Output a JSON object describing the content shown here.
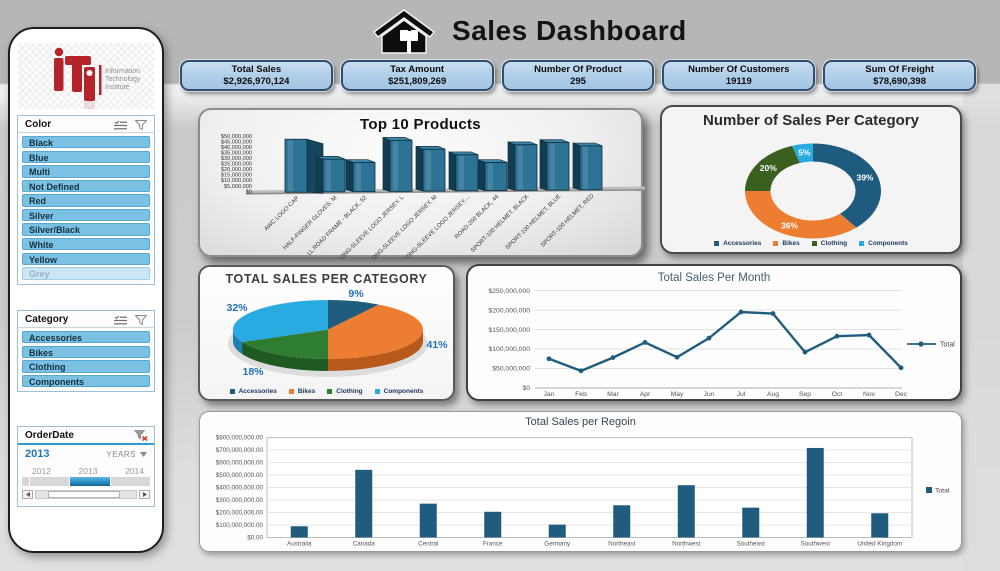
{
  "header": {
    "title": "Sales Dashboard"
  },
  "kpis": [
    {
      "label": "Total Sales",
      "value": "$2,926,970,124"
    },
    {
      "label": "Tax Amount",
      "value": "$251,809,269"
    },
    {
      "label": "Number Of Product",
      "value": "295"
    },
    {
      "label": "Number Of Customers",
      "value": "19119"
    },
    {
      "label": "Sum Of Freight",
      "value": "$78,690,398"
    }
  ],
  "sidebar": {
    "logo": {
      "mark": "iTi",
      "caption_lines": [
        "Information",
        "Technology",
        "Institute"
      ],
      "brand_color": "#b5232b"
    },
    "color_slicer": {
      "title": "Color",
      "items": [
        {
          "label": "Black",
          "selected": true
        },
        {
          "label": "Blue",
          "selected": true
        },
        {
          "label": "Multi",
          "selected": true
        },
        {
          "label": "Not Defined",
          "selected": true
        },
        {
          "label": "Red",
          "selected": true
        },
        {
          "label": "Silver",
          "selected": true
        },
        {
          "label": "Silver/Black",
          "selected": true
        },
        {
          "label": "White",
          "selected": true
        },
        {
          "label": "Yellow",
          "selected": true
        },
        {
          "label": "Grey",
          "selected": false
        }
      ]
    },
    "category_slicer": {
      "title": "Category",
      "items": [
        {
          "label": "Accessories",
          "selected": true
        },
        {
          "label": "Bikes",
          "selected": true
        },
        {
          "label": "Clothing",
          "selected": true
        },
        {
          "label": "Components",
          "selected": true
        }
      ]
    },
    "date_slicer": {
      "title": "OrderDate",
      "selection": "2013",
      "granularity": "YEARS",
      "years": [
        "2012",
        "2013",
        "2014"
      ],
      "selected_year": "2013"
    }
  },
  "chart_data": [
    {
      "id": "top10",
      "type": "bar",
      "style": "3d-column",
      "title": "Top 10 Products",
      "categories": [
        "AWC LOGO CAP",
        "HALF-FINGER GLOVES, M",
        "LL ROAD FRAME - BLACK, 52",
        "LONG-SLEEVE LOGO JERSEY, L",
        "LONG-SLEEVE LOGO JERSEY, M",
        "LONG-SLEEVE LOGO JERSEY,...",
        "ROAD-250 BLACK, 44",
        "SPORT-100 HELMET, BLACK",
        "SPORT-100 HELMET, BLUE",
        "SPORT-100 HELMET, RED"
      ],
      "values": [
        47000000,
        29000000,
        26000000,
        46000000,
        38000000,
        33000000,
        26000000,
        42000000,
        44000000,
        41000000
      ],
      "ylim": [
        0,
        50000000
      ],
      "ytick_step": 5000000,
      "bar_color": "#2d7396",
      "bar_side_color": "#143c51",
      "bar_top_color": "#3f87a9",
      "grid": false,
      "legend": null
    },
    {
      "id": "donut",
      "type": "pie",
      "style": "donut",
      "title": "Number of Sales Per Category",
      "categories": [
        "Accessories",
        "Bikes",
        "Clothing",
        "Components"
      ],
      "values": [
        39,
        36,
        20,
        5
      ],
      "unit": "%",
      "colors": [
        "#1f5b7e",
        "#ed7d31",
        "#3a5f1e",
        "#29abe2"
      ],
      "labels": [
        "39%",
        "36%",
        "20%",
        "5%"
      ],
      "legend_position": "bottom"
    },
    {
      "id": "pie3d",
      "type": "pie",
      "style": "3d-pie",
      "title": "TOTAL SALES PER CATEGORY",
      "categories": [
        "Accessories",
        "Bikes",
        "Clothing",
        "Components"
      ],
      "values": [
        9,
        41,
        18,
        32
      ],
      "unit": "%",
      "colors": [
        "#1f5c7e",
        "#ed7d31",
        "#2e7d32",
        "#29abe2"
      ],
      "side_colors": [
        "#133d55",
        "#b85a1b",
        "#1f5a22",
        "#1c7fb0"
      ],
      "labels": [
        "9%",
        "41%",
        "18%",
        "32%"
      ],
      "label_color": "#1f6fb5",
      "legend_position": "bottom"
    },
    {
      "id": "monthly",
      "type": "line",
      "title": "Total Sales Per Month",
      "x": [
        "Jan",
        "Feb",
        "Mar",
        "Apr",
        "May",
        "Jun",
        "Jul",
        "Aug",
        "Sep",
        "Oct",
        "Nov",
        "Dec"
      ],
      "series": [
        {
          "name": "Total",
          "values": [
            75000000,
            44000000,
            78000000,
            117000000,
            79000000,
            128000000,
            195000000,
            191000000,
            92000000,
            133000000,
            136000000,
            52000000
          ],
          "color": "#1f5c7e"
        }
      ],
      "ylim": [
        0,
        250000000
      ],
      "ytick_step": 50000000,
      "grid": true,
      "legend_position": "right"
    },
    {
      "id": "region",
      "type": "bar",
      "style": "flat-column",
      "title": "Total Sales per Regoin",
      "categories": [
        "Australia",
        "Canada",
        "Central",
        "France",
        "Germany",
        "Northeast",
        "Northwest",
        "Southeast",
        "Southwest",
        "United Kingdom"
      ],
      "series": [
        {
          "name": "Total",
          "values": [
            90000000,
            542000000,
            271000000,
            206000000,
            103000000,
            258000000,
            419000000,
            239000000,
            717000000,
            194000000
          ],
          "color": "#1f5c7e"
        }
      ],
      "ylim": [
        0,
        800000000
      ],
      "ytick_step": 100000000,
      "decimals": ".00",
      "grid": true,
      "legend_position": "right"
    }
  ]
}
